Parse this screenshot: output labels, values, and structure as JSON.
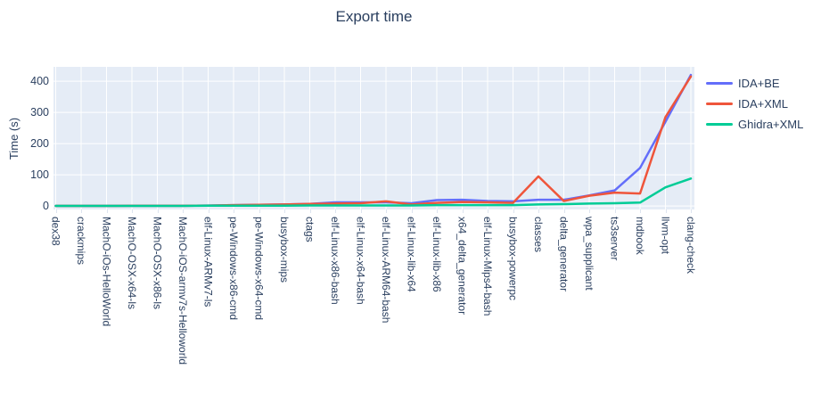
{
  "title": "Export time",
  "y_axis": {
    "label": "Time (s)",
    "ticks": [
      0,
      100,
      200,
      300,
      400
    ]
  },
  "legend": {
    "entries": [
      "IDA+BE",
      "IDA+XML",
      "Ghidra+XML"
    ]
  },
  "colors": {
    "ida_be": "#636EFA",
    "ida_xml": "#EF553B",
    "ghidra_xml": "#00CC96",
    "plot_background": "#E5ECF6",
    "grid": "#FFFFFF",
    "text": "#2a3f5f"
  },
  "chart_data": {
    "type": "line",
    "title": "Export time",
    "xlabel": "",
    "ylabel": "Time (s)",
    "ylim": [
      -11,
      446
    ],
    "yticks": [
      0,
      100,
      200,
      300,
      400
    ],
    "grid": true,
    "legend_position": "right",
    "categories": [
      "dex38",
      "crackmips",
      "MachO-iOs-HelloWorld",
      "MachO-OSX-x64-ls",
      "MachO-OSX-x86-ls",
      "MachO-iOS-armv7s-Helloworld",
      "elf-Linux-ARMv7-ls",
      "pe-Windows-x86-cmd",
      "pe-Windows-x64-cmd",
      "busybox-mips",
      "ctags",
      "elf-Linux-x86-bash",
      "elf-Linux-x64-bash",
      "elf-Linux-ARM64-bash",
      "elf-Linux-lib-x64",
      "elf-Linux-lib-x86",
      "x64_delta_generator",
      "elf-Linux-Mips4-bash",
      "busybox-powerpc",
      "classes",
      "delta_generator",
      "wpa_supplicant",
      "ts3server",
      "mdbook",
      "llvm-opt",
      "clang-check"
    ],
    "series": [
      {
        "name": "IDA+BE",
        "color": "#636EFA",
        "values": [
          0.4,
          0.4,
          0.5,
          0.8,
          0.8,
          0.8,
          1.5,
          3,
          4,
          5,
          7,
          12,
          12,
          12,
          9,
          19,
          20,
          16,
          15,
          20,
          20,
          34,
          50,
          122,
          270,
          420
        ]
      },
      {
        "name": "IDA+XML",
        "color": "#EF553B",
        "values": [
          0.4,
          0.4,
          0.5,
          0.8,
          0.8,
          0.8,
          1.5,
          3,
          4,
          5,
          7,
          8,
          9,
          15,
          5,
          10,
          13,
          12,
          10,
          95,
          16,
          33,
          43,
          40,
          285,
          415
        ]
      },
      {
        "name": "Ghidra+XML",
        "color": "#00CC96",
        "values": [
          0.3,
          0.3,
          0.3,
          0.5,
          0.5,
          0.5,
          1,
          1,
          1,
          1,
          2,
          2,
          2,
          2,
          2,
          3,
          3,
          3,
          3,
          5,
          6,
          8,
          9,
          11,
          60,
          88
        ]
      }
    ]
  }
}
